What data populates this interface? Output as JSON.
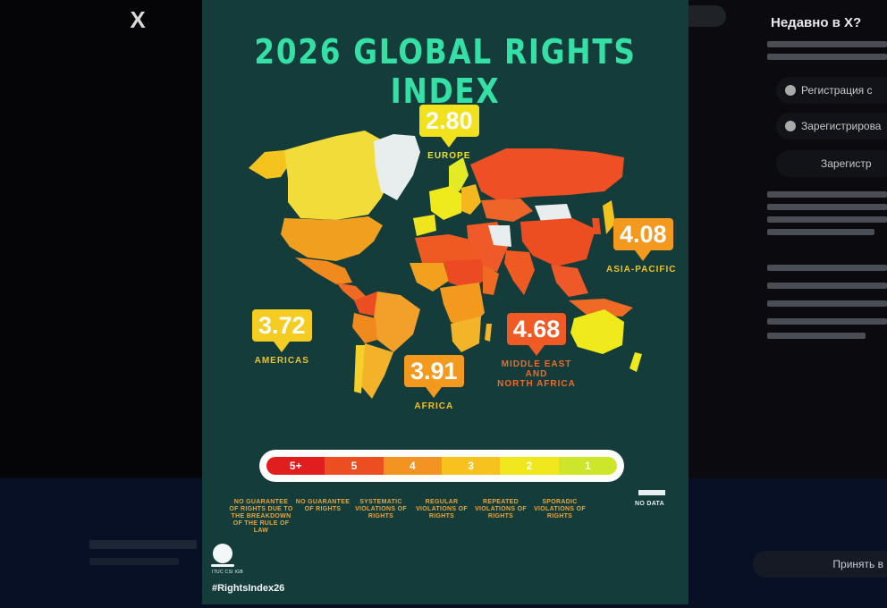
{
  "viewer": {
    "close_label": "X"
  },
  "sidebar": {
    "title": "Недавно в X?",
    "btn_google": "Регистрация с",
    "btn_apple": "Зарегистрирова",
    "btn_register": "Зарегистр",
    "follow_label": "Принять в"
  },
  "infographic": {
    "title": "2026 GLOBAL RIGHTS INDEX",
    "regions": [
      {
        "name": "EUROPE",
        "value": "2.80",
        "color": "#f2e21e",
        "label_color": "#f2e21e"
      },
      {
        "name": "ASIA-PACIFIC",
        "value": "4.08",
        "color": "#f39a1e",
        "label_color": "#f2c21e"
      },
      {
        "name": "AMERICAS",
        "value": "3.72",
        "color": "#f5cc22",
        "label_color": "#f2c21e"
      },
      {
        "name": "AFRICA",
        "value": "3.91",
        "color": "#f39a1e",
        "label_color": "#f2c21e"
      },
      {
        "name": "MIDDLE EAST AND\nNORTH AFRICA",
        "value": "4.68",
        "color": "#ef5a25",
        "label_color": "#ef6a2a"
      }
    ],
    "scale": [
      {
        "rating": "5+",
        "color": "#e01e1e",
        "desc": "NO GUARANTEE OF RIGHTS DUE TO THE BREAKDOWN OF THE RULE OF LAW"
      },
      {
        "rating": "5",
        "color": "#ec4e22",
        "desc": "NO GUARANTEE OF RIGHTS"
      },
      {
        "rating": "4",
        "color": "#f39422",
        "desc": "SYSTEMATIC VIOLATIONS OF RIGHTS"
      },
      {
        "rating": "3",
        "color": "#f7c21e",
        "desc": "REGULAR VIOLATIONS OF RIGHTS"
      },
      {
        "rating": "2",
        "color": "#f0e81c",
        "desc": "REPEATED VIOLATIONS OF RIGHTS"
      },
      {
        "rating": "1",
        "color": "#cde62a",
        "desc": "SPORADIC VIOLATIONS OF RIGHTS"
      }
    ],
    "no_data_label": "NO DATA",
    "logo_text": "ITUC CSI IGB",
    "hashtag": "#RightsIndex26"
  }
}
